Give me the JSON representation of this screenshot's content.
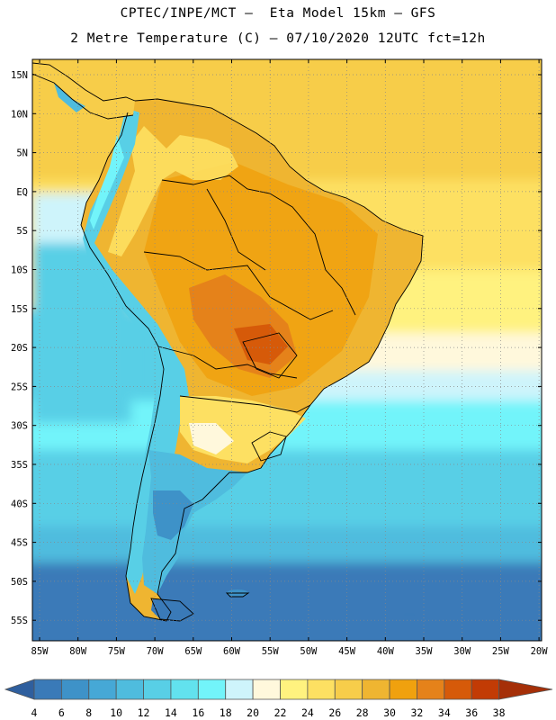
{
  "header": {
    "line1": "CPTEC/INPE/MCT –  Eta Model 15km – GFS",
    "line2": "2 Metre Temperature (C) – 07/10/2020 12UTC fct=12h"
  },
  "axes": {
    "lat_labels": [
      "15N",
      "10N",
      "5N",
      "EQ",
      "5S",
      "10S",
      "15S",
      "20S",
      "25S",
      "30S",
      "35S",
      "40S",
      "45S",
      "50S",
      "55S"
    ],
    "lon_labels": [
      "85W",
      "80W",
      "75W",
      "70W",
      "65W",
      "60W",
      "55W",
      "50W",
      "45W",
      "40W",
      "35W",
      "30W",
      "25W",
      "20W"
    ]
  },
  "colorbar": {
    "ticks": [
      "4",
      "6",
      "8",
      "10",
      "12",
      "14",
      "16",
      "18",
      "20",
      "22",
      "24",
      "26",
      "28",
      "30",
      "32",
      "34",
      "36",
      "38"
    ],
    "colors": [
      "#2f5f9e",
      "#3a7ab8",
      "#3e92c8",
      "#46a8d6",
      "#4fbcde",
      "#58cfe6",
      "#62e2ee",
      "#72f4fa",
      "#cef4fb",
      "#fff8dc",
      "#fff27f",
      "#fde062",
      "#f7cd4a",
      "#efb531",
      "#f0a10e",
      "#e5821a",
      "#d65a09",
      "#c23b05",
      "#a52f08"
    ]
  }
}
